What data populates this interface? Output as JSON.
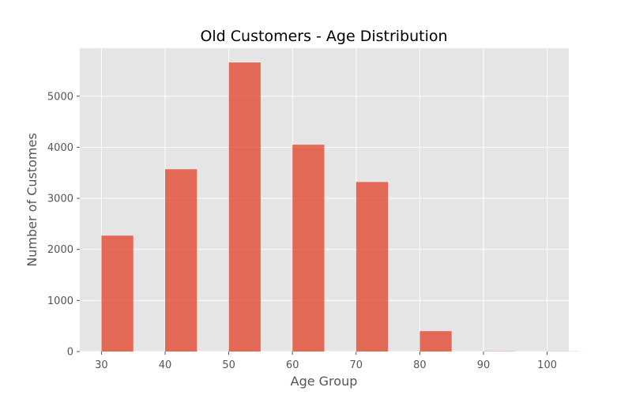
{
  "chart_data": {
    "type": "bar",
    "title": "Old Customers - Age Distribution",
    "xlabel": "Age Group",
    "ylabel": "Number of Customes",
    "x": [
      30,
      40,
      50,
      60,
      70,
      80,
      90,
      100
    ],
    "values": [
      2270,
      3570,
      5660,
      4050,
      3320,
      400,
      5,
      3
    ],
    "xlim": [
      26.6,
      103.4
    ],
    "ylim": [
      0,
      5940
    ],
    "xticks": [
      30,
      40,
      50,
      60,
      70,
      80,
      90,
      100
    ],
    "yticks": [
      0,
      1000,
      2000,
      3000,
      4000,
      5000
    ],
    "bar_width": 5,
    "grid": true,
    "colors": {
      "bar": "#E24A33",
      "background": "#E5E5E5",
      "grid": "#FFFFFF"
    }
  }
}
